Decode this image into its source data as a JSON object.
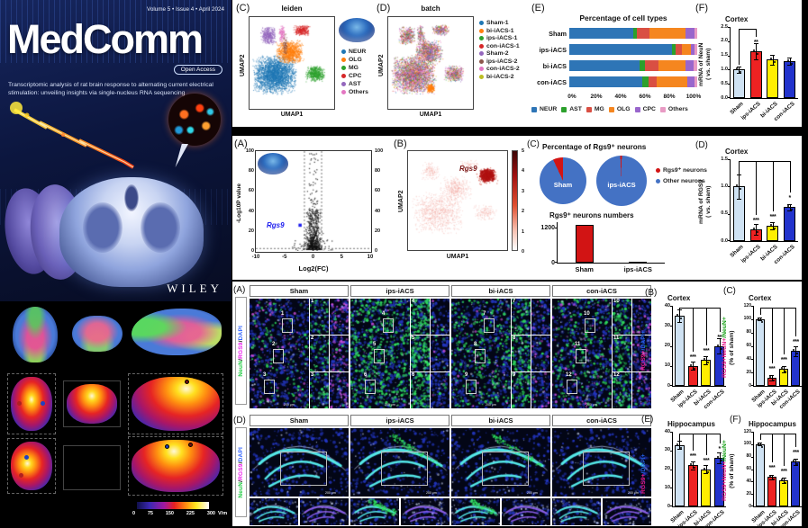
{
  "cover": {
    "issue_line": "Volume 5 • Issue 4 • April 2024",
    "title": "MedComm",
    "open_access_badge": "Open Access",
    "subtitle": "Transcriptomic analysis of rat brain response to alternating current electrical stimulation: unveiling insights via single-nucleus RNA sequencing",
    "publisher": "WILEY"
  },
  "simulation_maps": {
    "colorbar_ticks": [
      "0",
      "75",
      "150",
      "225",
      "300"
    ],
    "colorbar_unit": "V/m"
  },
  "panel_labels": {
    "top_c": "(C)",
    "top_d": "(D)",
    "top_e": "(E)",
    "top_f": "(F)",
    "mid_a": "(A)",
    "mid_b": "(B)",
    "mid_c": "(C)",
    "mid_d": "(D)",
    "bot_a": "(A)",
    "bot_b": "(B)",
    "bot_c": "(C)",
    "bot_d": "(D)",
    "bot_e": "(E)",
    "bot_f": "(F)"
  },
  "umap_leiden": {
    "title": "leiden",
    "xlabel": "UMAP1",
    "ylabel": "UMAP2",
    "legend": [
      {
        "label": "NEUR",
        "color": "#1f77b4"
      },
      {
        "label": "OLG",
        "color": "#ff7f0e"
      },
      {
        "label": "MG",
        "color": "#2ca02c"
      },
      {
        "label": "CPC",
        "color": "#d62728"
      },
      {
        "label": "AST",
        "color": "#9467bd"
      },
      {
        "label": "Others",
        "color": "#e377c2"
      }
    ]
  },
  "umap_batch": {
    "title": "batch",
    "xlabel": "UMAP1",
    "ylabel": "UMAP2",
    "legend": [
      {
        "label": "Sham-1",
        "color": "#1f77b4"
      },
      {
        "label": "bi-iACS-1",
        "color": "#ff7f0e"
      },
      {
        "label": "ips-iACS-1",
        "color": "#2ca02c"
      },
      {
        "label": "con-iACS-1",
        "color": "#d62728"
      },
      {
        "label": "Sham-2",
        "color": "#9467bd"
      },
      {
        "label": "ips-iACS-2",
        "color": "#8c564b"
      },
      {
        "label": "con-iACS-2",
        "color": "#e377c2"
      },
      {
        "label": "bi-iACS-2",
        "color": "#bcbd22"
      }
    ]
  },
  "microscopy_cortex": {
    "stain": [
      {
        "text": "NeuN",
        "color": "#22cc44"
      },
      {
        "text": "/",
        "color": "#111111"
      },
      {
        "text": "RGS9",
        "color": "#ee22ee"
      },
      {
        "text": "/",
        "color": "#111111"
      },
      {
        "text": "DAPI",
        "color": "#3366ff"
      }
    ],
    "scale_bar": "200 μm",
    "groups": [
      {
        "name": "Sham",
        "boxes": [
          "1",
          "2",
          "3"
        ]
      },
      {
        "name": "ips-iACS",
        "boxes": [
          "4",
          "5",
          "6"
        ]
      },
      {
        "name": "bi-iACS",
        "boxes": [
          "7",
          "8",
          "9"
        ]
      },
      {
        "name": "con-iACS",
        "boxes": [
          "10",
          "11",
          "12"
        ]
      }
    ]
  },
  "microscopy_hippocampus": {
    "stain": [
      {
        "text": "NeuN",
        "color": "#22cc44"
      },
      {
        "text": "/",
        "color": "#111111"
      },
      {
        "text": "RGS9",
        "color": "#ee22ee"
      },
      {
        "text": "/",
        "color": "#111111"
      },
      {
        "text": "DAPI",
        "color": "#3366ff"
      }
    ],
    "scale_bar": "200 μm",
    "groups": [
      {
        "name": "Sham"
      },
      {
        "name": "ips-iACS"
      },
      {
        "name": "bi-iACS"
      },
      {
        "name": "con-iACS"
      }
    ]
  },
  "chart_data": [
    {
      "id": "cell_types",
      "type": "bar",
      "stacked": true,
      "orientation": "horizontal",
      "title": "Percentage of cell types",
      "categories": [
        "Sham",
        "ips-iACS",
        "bi-iACS",
        "con-iACS"
      ],
      "series": [
        {
          "name": "NEUR",
          "color": "#2e75b6",
          "values": [
            50,
            80,
            55,
            57
          ]
        },
        {
          "name": "AST",
          "color": "#2ca02c",
          "values": [
            3,
            3,
            4,
            5
          ]
        },
        {
          "name": "MG",
          "color": "#d94f43",
          "values": [
            10,
            5,
            11,
            6
          ]
        },
        {
          "name": "OLG",
          "color": "#f5861f",
          "values": [
            28,
            7,
            21,
            24
          ]
        },
        {
          "name": "CPC",
          "color": "#9966cc",
          "values": [
            7,
            3,
            6,
            6
          ]
        },
        {
          "name": "Others",
          "color": "#e89bc4",
          "values": [
            2,
            2,
            3,
            2
          ]
        }
      ],
      "xticks": [
        "0%",
        "20%",
        "40%",
        "60%",
        "80%",
        "100%"
      ],
      "xlim": [
        0,
        100
      ]
    },
    {
      "id": "neun_mrna",
      "type": "bar",
      "region": "Cortex",
      "ylabel": "mRNA of NeuN",
      "ylabel2": "( vs. sham)",
      "categories": [
        "Sham",
        "ips-iACS",
        "bi-iACS",
        "con-iACS"
      ],
      "values": [
        1.0,
        1.65,
        1.35,
        1.3
      ],
      "errors": [
        0.1,
        0.28,
        0.18,
        0.12
      ],
      "colors": [
        "#cfe2f3",
        "#ee2222",
        "#ffee00",
        "#2233cc"
      ],
      "significance": [
        "",
        "**",
        "",
        ""
      ],
      "ylim": [
        0,
        2.5
      ],
      "yticks": [
        "0.0",
        "0.5",
        "1.0",
        "1.5",
        "2.0",
        "2.5"
      ],
      "bw": 13
    },
    {
      "id": "volcano",
      "type": "scatter",
      "xlabel": "Log2(FC)",
      "ylabel": "-Log10P value",
      "xticks": [
        "-10",
        "-5",
        "0",
        "5",
        "10"
      ],
      "yticks": [
        "0",
        "20",
        "40",
        "60",
        "80",
        "100"
      ],
      "xlim": [
        -10,
        10
      ],
      "ylim": [
        0,
        100
      ],
      "gene": "Rgs9",
      "gene_color": "#1a1aee",
      "highlight_x": -2.3,
      "highlight_y": 26,
      "threshold_x": [
        -1.5,
        1.5
      ],
      "threshold_y": 2.5
    },
    {
      "id": "rgs9_feature",
      "type": "scatter",
      "subtype": "feature",
      "gene": "Rgs9",
      "xlabel": "UMAP1",
      "ylabel": "UMAP2",
      "colorbar_ticks": [
        "5",
        "4",
        "3",
        "2",
        "1",
        "0"
      ]
    },
    {
      "id": "rgs9_pie",
      "type": "pie",
      "title": "Percentage of Rgs9⁺ neurons",
      "pies": [
        {
          "name": "Sham",
          "slices": [
            {
              "label": "Rgs9⁺ neurons",
              "value": 7,
              "color": "#d21414"
            },
            {
              "label": "Other neurons",
              "value": 93,
              "color": "#4472c4"
            }
          ]
        },
        {
          "name": "ips-iACS",
          "slices": [
            {
              "label": "Rgs9⁺ neurons",
              "value": 1,
              "color": "#d21414"
            },
            {
              "label": "Other neurons",
              "value": 99,
              "color": "#4472c4"
            }
          ]
        }
      ],
      "legend": [
        {
          "label": "Rgs9⁺ neurons",
          "color": "#d21414"
        },
        {
          "label": "Other neurons",
          "color": "#4472c4"
        }
      ]
    },
    {
      "id": "rgs9_numbers",
      "type": "bar",
      "title": "Rgs9⁺ neurons numbers",
      "categories": [
        "Sham",
        "ips-iACS"
      ],
      "values": [
        1300,
        30
      ],
      "colors": [
        "#d21414",
        "#d21414"
      ],
      "ylim": [
        0,
        1400
      ],
      "yticks": [
        "0",
        "1200"
      ],
      "bw": 20,
      "flat": true,
      "dots": false,
      "ytf": 7
    },
    {
      "id": "rgs9_mrna",
      "type": "bar",
      "region": "Cortex",
      "ylabel": "mRNA of RGS9",
      "ylabel2": "( vs. sham)",
      "categories": [
        "Sham",
        "ips-iACS",
        "bi-iACS",
        "con-iACS"
      ],
      "values": [
        1.0,
        0.21,
        0.28,
        0.62
      ],
      "errors": [
        0.22,
        0.1,
        0.06,
        0.06
      ],
      "colors": [
        "#cfe2f3",
        "#ee2222",
        "#ffee00",
        "#2233cc"
      ],
      "significance": [
        "",
        "***",
        "***",
        "*"
      ],
      "ylim": [
        0,
        1.5
      ],
      "yticks": [
        "0.0",
        "0.5",
        "1.0",
        "1.5"
      ],
      "bw": 13
    },
    {
      "id": "cortex_rgs9_dapi",
      "type": "bar",
      "region": "Cortex",
      "ylabel_parts": [
        {
          "text": "RGS9+",
          "color": "#e8198b"
        },
        {
          "text": "/DAPI+",
          "color": "#2563eb"
        },
        {
          "text": "%",
          "color": "#111111"
        }
      ],
      "categories": [
        "Sham",
        "ips-iACS",
        "bi-iACS",
        "con-iACS"
      ],
      "values": [
        35,
        10,
        13,
        20
      ],
      "errors": [
        3,
        2,
        2,
        4
      ],
      "colors": [
        "#cfe2f3",
        "#ee2222",
        "#ffee00",
        "#2233cc"
      ],
      "significance": [
        "",
        "***",
        "***",
        "**"
      ],
      "ylim": [
        0,
        40
      ],
      "yticks": [
        "0",
        "10",
        "20",
        "30",
        "40"
      ],
      "bw": 11
    },
    {
      "id": "cortex_rgs9_neun",
      "type": "bar",
      "region": "Cortex",
      "ylabel_parts": [
        {
          "text": "RGS9+NeuN+",
          "color": "#e8198b"
        },
        {
          "text": "/NeuN+",
          "color": "#18a018"
        }
      ],
      "ylabel2": "(% of sham)",
      "categories": [
        "Sham",
        "ips-iACS",
        "bi-iACS",
        "con-iACS"
      ],
      "values": [
        100,
        12,
        25,
        52
      ],
      "errors": [
        2,
        4,
        5,
        8
      ],
      "colors": [
        "#cfe2f3",
        "#ee2222",
        "#ffee00",
        "#2233cc"
      ],
      "significance": [
        "",
        "***",
        "***",
        "***"
      ],
      "ylim": [
        0,
        120
      ],
      "yticks": [
        "0",
        "20",
        "40",
        "60",
        "80",
        "100",
        "120"
      ],
      "bw": 10,
      "ytf": 5
    },
    {
      "id": "hippo_rgs9_dapi",
      "type": "bar",
      "region": "Hippocampus",
      "ylabel_parts": [
        {
          "text": "RGS9+",
          "color": "#e8198b"
        },
        {
          "text": "/DAPI+",
          "color": "#2563eb"
        },
        {
          "text": "%",
          "color": "#111111"
        }
      ],
      "categories": [
        "Sham",
        "ips-iACS",
        "bi-iACS",
        "con-iACS"
      ],
      "values": [
        33,
        22,
        20,
        26
      ],
      "errors": [
        2,
        2,
        2,
        3
      ],
      "colors": [
        "#cfe2f3",
        "#ee2222",
        "#ffee00",
        "#2233cc"
      ],
      "significance": [
        "",
        "***",
        "***",
        "*"
      ],
      "ylim": [
        0,
        40
      ],
      "yticks": [
        "0",
        "10",
        "20",
        "30",
        "40"
      ],
      "bw": 11
    },
    {
      "id": "hippo_rgs9_neun",
      "type": "bar",
      "region": "Hippocampus",
      "ylabel_parts": [
        {
          "text": "RGS9+NeuN+",
          "color": "#e8198b"
        },
        {
          "text": "/NeuN+",
          "color": "#18a018"
        }
      ],
      "ylabel2": "(% of sham)",
      "categories": [
        "Sham",
        "ips-iACS",
        "bi-iACS",
        "con-iACS"
      ],
      "values": [
        100,
        47,
        42,
        72
      ],
      "errors": [
        2,
        4,
        4,
        5
      ],
      "colors": [
        "#cfe2f3",
        "#ee2222",
        "#ffee00",
        "#2233cc"
      ],
      "significance": [
        "",
        "***",
        "***",
        "***"
      ],
      "ylim": [
        0,
        120
      ],
      "yticks": [
        "0",
        "20",
        "40",
        "60",
        "80",
        "100",
        "120"
      ],
      "bw": 10,
      "ytf": 5
    }
  ]
}
